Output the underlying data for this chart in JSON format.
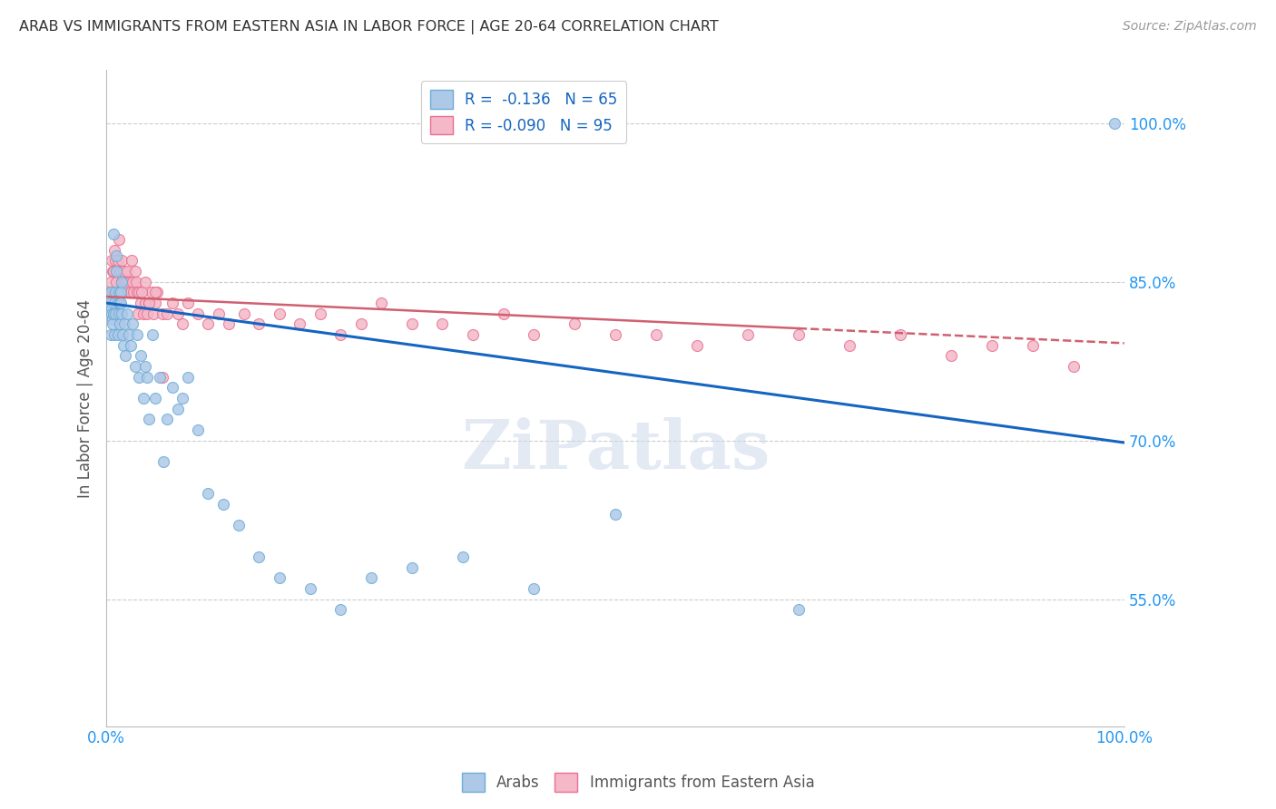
{
  "title": "ARAB VS IMMIGRANTS FROM EASTERN ASIA IN LABOR FORCE | AGE 20-64 CORRELATION CHART",
  "source": "Source: ZipAtlas.com",
  "ylabel": "In Labor Force | Age 20-64",
  "xlim": [
    0.0,
    1.0
  ],
  "ylim": [
    0.43,
    1.05
  ],
  "yticks": [
    0.55,
    0.7,
    0.85,
    1.0
  ],
  "ytick_labels": [
    "55.0%",
    "70.0%",
    "85.0%",
    "100.0%"
  ],
  "xtick_labels": [
    "0.0%",
    "100.0%"
  ],
  "series_arab": {
    "face_color": "#aec8e8",
    "edge_color": "#6baed6",
    "x": [
      0.003,
      0.004,
      0.004,
      0.005,
      0.005,
      0.006,
      0.006,
      0.007,
      0.007,
      0.008,
      0.008,
      0.009,
      0.009,
      0.01,
      0.01,
      0.011,
      0.011,
      0.012,
      0.012,
      0.013,
      0.013,
      0.014,
      0.014,
      0.015,
      0.015,
      0.016,
      0.017,
      0.018,
      0.019,
      0.02,
      0.022,
      0.024,
      0.026,
      0.028,
      0.03,
      0.032,
      0.034,
      0.036,
      0.038,
      0.04,
      0.042,
      0.045,
      0.048,
      0.052,
      0.056,
      0.06,
      0.065,
      0.07,
      0.075,
      0.08,
      0.09,
      0.1,
      0.115,
      0.13,
      0.15,
      0.17,
      0.2,
      0.23,
      0.26,
      0.3,
      0.35,
      0.42,
      0.5,
      0.68,
      0.99
    ],
    "y": [
      0.83,
      0.84,
      0.8,
      0.825,
      0.82,
      0.815,
      0.81,
      0.82,
      0.895,
      0.8,
      0.83,
      0.84,
      0.82,
      0.86,
      0.875,
      0.83,
      0.8,
      0.82,
      0.84,
      0.83,
      0.81,
      0.83,
      0.84,
      0.85,
      0.82,
      0.8,
      0.79,
      0.81,
      0.78,
      0.82,
      0.8,
      0.79,
      0.81,
      0.77,
      0.8,
      0.76,
      0.78,
      0.74,
      0.77,
      0.76,
      0.72,
      0.8,
      0.74,
      0.76,
      0.68,
      0.72,
      0.75,
      0.73,
      0.74,
      0.76,
      0.71,
      0.65,
      0.64,
      0.62,
      0.59,
      0.57,
      0.56,
      0.54,
      0.57,
      0.58,
      0.59,
      0.56,
      0.63,
      0.54,
      1.0
    ]
  },
  "series_east_asia": {
    "face_color": "#f4b8c8",
    "edge_color": "#e87090",
    "x": [
      0.003,
      0.004,
      0.005,
      0.005,
      0.006,
      0.006,
      0.007,
      0.007,
      0.008,
      0.008,
      0.009,
      0.009,
      0.01,
      0.01,
      0.011,
      0.011,
      0.012,
      0.012,
      0.013,
      0.013,
      0.014,
      0.014,
      0.015,
      0.015,
      0.016,
      0.016,
      0.017,
      0.017,
      0.018,
      0.018,
      0.019,
      0.019,
      0.02,
      0.02,
      0.021,
      0.022,
      0.023,
      0.024,
      0.025,
      0.026,
      0.027,
      0.028,
      0.029,
      0.03,
      0.031,
      0.032,
      0.034,
      0.036,
      0.038,
      0.04,
      0.042,
      0.044,
      0.046,
      0.048,
      0.05,
      0.055,
      0.06,
      0.065,
      0.07,
      0.075,
      0.08,
      0.09,
      0.1,
      0.11,
      0.12,
      0.135,
      0.15,
      0.17,
      0.19,
      0.21,
      0.23,
      0.25,
      0.27,
      0.3,
      0.33,
      0.36,
      0.39,
      0.42,
      0.46,
      0.5,
      0.54,
      0.58,
      0.63,
      0.68,
      0.73,
      0.78,
      0.83,
      0.87,
      0.91,
      0.95,
      0.035,
      0.038,
      0.042,
      0.048,
      0.055
    ],
    "y": [
      0.84,
      0.85,
      0.83,
      0.87,
      0.84,
      0.86,
      0.86,
      0.84,
      0.84,
      0.88,
      0.84,
      0.87,
      0.85,
      0.86,
      0.83,
      0.87,
      0.84,
      0.89,
      0.84,
      0.86,
      0.86,
      0.84,
      0.87,
      0.85,
      0.84,
      0.855,
      0.84,
      0.86,
      0.85,
      0.84,
      0.85,
      0.84,
      0.86,
      0.85,
      0.84,
      0.845,
      0.85,
      0.84,
      0.87,
      0.85,
      0.84,
      0.86,
      0.85,
      0.84,
      0.82,
      0.84,
      0.83,
      0.82,
      0.83,
      0.82,
      0.83,
      0.84,
      0.82,
      0.83,
      0.84,
      0.82,
      0.82,
      0.83,
      0.82,
      0.81,
      0.83,
      0.82,
      0.81,
      0.82,
      0.81,
      0.82,
      0.81,
      0.82,
      0.81,
      0.82,
      0.8,
      0.81,
      0.83,
      0.81,
      0.81,
      0.8,
      0.82,
      0.8,
      0.81,
      0.8,
      0.8,
      0.79,
      0.8,
      0.8,
      0.79,
      0.8,
      0.78,
      0.79,
      0.79,
      0.77,
      0.84,
      0.85,
      0.83,
      0.84,
      0.76
    ]
  },
  "line_arab": {
    "color": "#1565c0",
    "x_start": 0.0,
    "x_end": 1.0,
    "y_start": 0.83,
    "y_end": 0.698
  },
  "line_east_asia_solid": {
    "color": "#d06070",
    "x_start": 0.0,
    "x_end": 0.68,
    "y_start": 0.836,
    "y_end": 0.806
  },
  "line_east_asia_dashed": {
    "color": "#d06070",
    "x_start": 0.68,
    "x_end": 1.0,
    "y_start": 0.806,
    "y_end": 0.792
  },
  "background_color": "#ffffff",
  "grid_color": "#cccccc",
  "title_color": "#333333",
  "axis_color": "#2196f3",
  "watermark": "ZiPatlas",
  "marker_size": 75
}
